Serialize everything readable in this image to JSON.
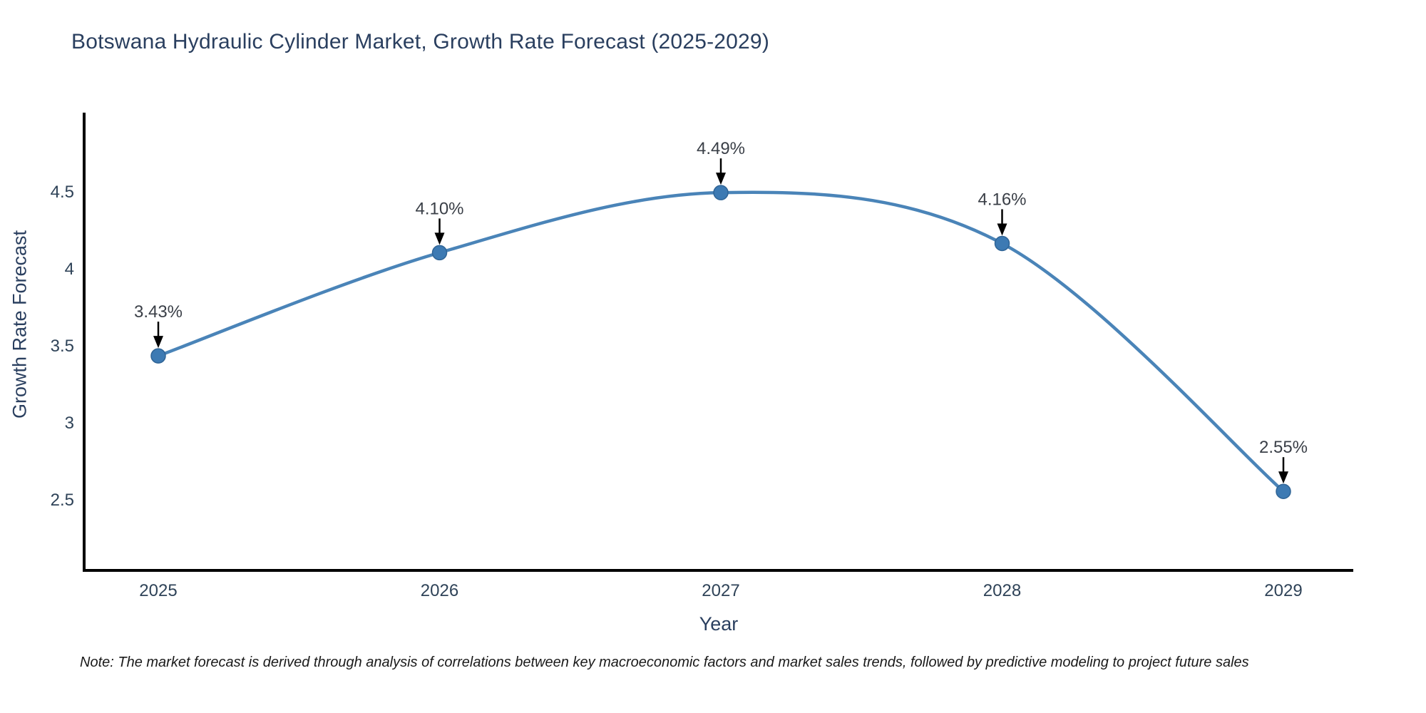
{
  "page": {
    "background": "#ffffff"
  },
  "chart_data": {
    "type": "line",
    "title": "Botswana Hydraulic Cylinder Market, Growth Rate Forecast (2025-2029)",
    "xlabel": "Year",
    "ylabel": "Growth Rate Forecast",
    "categories": [
      "2025",
      "2026",
      "2027",
      "2028",
      "2029"
    ],
    "values": [
      3.43,
      4.1,
      4.49,
      4.16,
      2.55
    ],
    "point_labels": [
      "3.43%",
      "4.10%",
      "4.49%",
      "4.16%",
      "2.55%"
    ],
    "yticks": [
      4.5,
      4,
      3.5,
      3,
      2.5
    ],
    "ylim": [
      2.03,
      4.97
    ],
    "line_shape": "spline",
    "grid": false,
    "legend": "none",
    "annotation_style": "label-with-down-arrow",
    "colors": {
      "line": "#4a84b8",
      "marker_fill": "#3d7ab3",
      "marker_border": "#2f6496",
      "axis_line": "#000000",
      "tick_text": "#2f4358",
      "title_text": "#2a3f5f",
      "annotation_text": "#3a3f47",
      "annotation_arrow": "#000000",
      "note_text": "#1a1a1a"
    }
  },
  "footnote": "Note: The market forecast is derived through analysis of correlations between key macroeconomic factors and market sales trends, followed by predictive modeling to project future sales"
}
